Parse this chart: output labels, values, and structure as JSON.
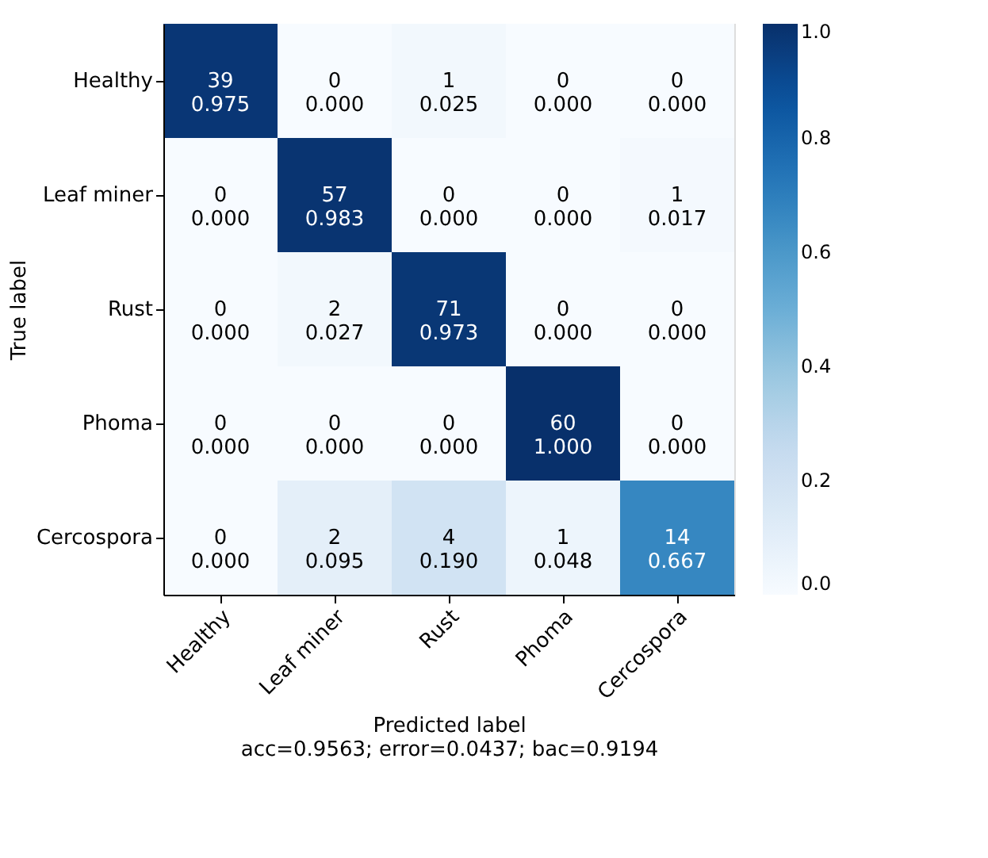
{
  "chart_data": {
    "type": "heatmap",
    "xlabel": "Predicted label",
    "ylabel": "True label",
    "annotations": [
      "acc=0.9563; error=0.0437; bac=0.9194"
    ],
    "categories": [
      "Healthy",
      "Leaf miner",
      "Rust",
      "Phoma",
      "Cercospora"
    ],
    "y_categories": [
      "Healthy",
      "Leaf miner",
      "Rust",
      "Phoma",
      "Cercospora"
    ],
    "cells": [
      [
        0.975,
        0.0,
        0.025,
        0.0,
        0.0
      ],
      [
        0.0,
        0.983,
        0.0,
        0.0,
        0.017
      ],
      [
        0.0,
        0.027,
        0.973,
        0.0,
        0.0
      ],
      [
        0.0,
        0.0,
        0.0,
        1.0,
        0.0
      ],
      [
        0.0,
        0.095,
        0.19,
        0.048,
        0.667
      ]
    ],
    "cell_labels": [
      [
        "39\n0.975",
        "0\n0.000",
        "1\n0.025",
        "0\n0.000",
        "0\n0.000"
      ],
      [
        "0\n0.000",
        "57\n0.983",
        "0\n0.000",
        "0\n0.000",
        "1\n0.017"
      ],
      [
        "0\n0.000",
        "2\n0.027",
        "71\n0.973",
        "0\n0.000",
        "0\n0.000"
      ],
      [
        "0\n0.000",
        "0\n0.000",
        "0\n0.000",
        "60\n1.000",
        "0\n0.000"
      ],
      [
        "0\n0.000",
        "2\n0.095",
        "4\n0.190",
        "1\n0.048",
        "14\n0.667"
      ]
    ],
    "clim": [
      0,
      1
    ],
    "cticks": [
      {
        "value": 0,
        "label": "0.0"
      },
      {
        "value": 0.2,
        "label": "0.2"
      },
      {
        "value": 0.4,
        "label": "0.4"
      },
      {
        "value": 0.6,
        "label": "0.6"
      },
      {
        "value": 0.8,
        "label": "0.8"
      },
      {
        "value": 1,
        "label": "1.0"
      }
    ]
  }
}
